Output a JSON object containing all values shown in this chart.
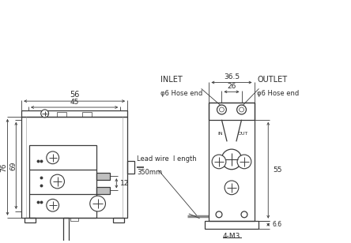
{
  "bg_color": "#ffffff",
  "line_color": "#3a3a3a",
  "dim_color": "#3a3a3a",
  "text_color": "#2a2a2a",
  "fig_width": 4.44,
  "fig_height": 3.08,
  "dpi": 100,
  "annotations": {
    "dim_12": "12",
    "dim_56": "56",
    "dim_45": "45",
    "dim_76": "76",
    "dim_69": "69",
    "dim_36_5": "36.5",
    "dim_26": "26",
    "dim_55": "55",
    "dim_6_6": "6.6",
    "inlet": "INLET",
    "outlet": "OUTLET",
    "phi6_hose_left": "φ6 Hose end",
    "phi6_hose_right": "φ6 Hose end",
    "lead_wire_line1": "Lead wire  l ength",
    "lead_wire_line2": "350mm",
    "m3": "4-M3",
    "in_label": "IN",
    "out_label": "OUT"
  }
}
